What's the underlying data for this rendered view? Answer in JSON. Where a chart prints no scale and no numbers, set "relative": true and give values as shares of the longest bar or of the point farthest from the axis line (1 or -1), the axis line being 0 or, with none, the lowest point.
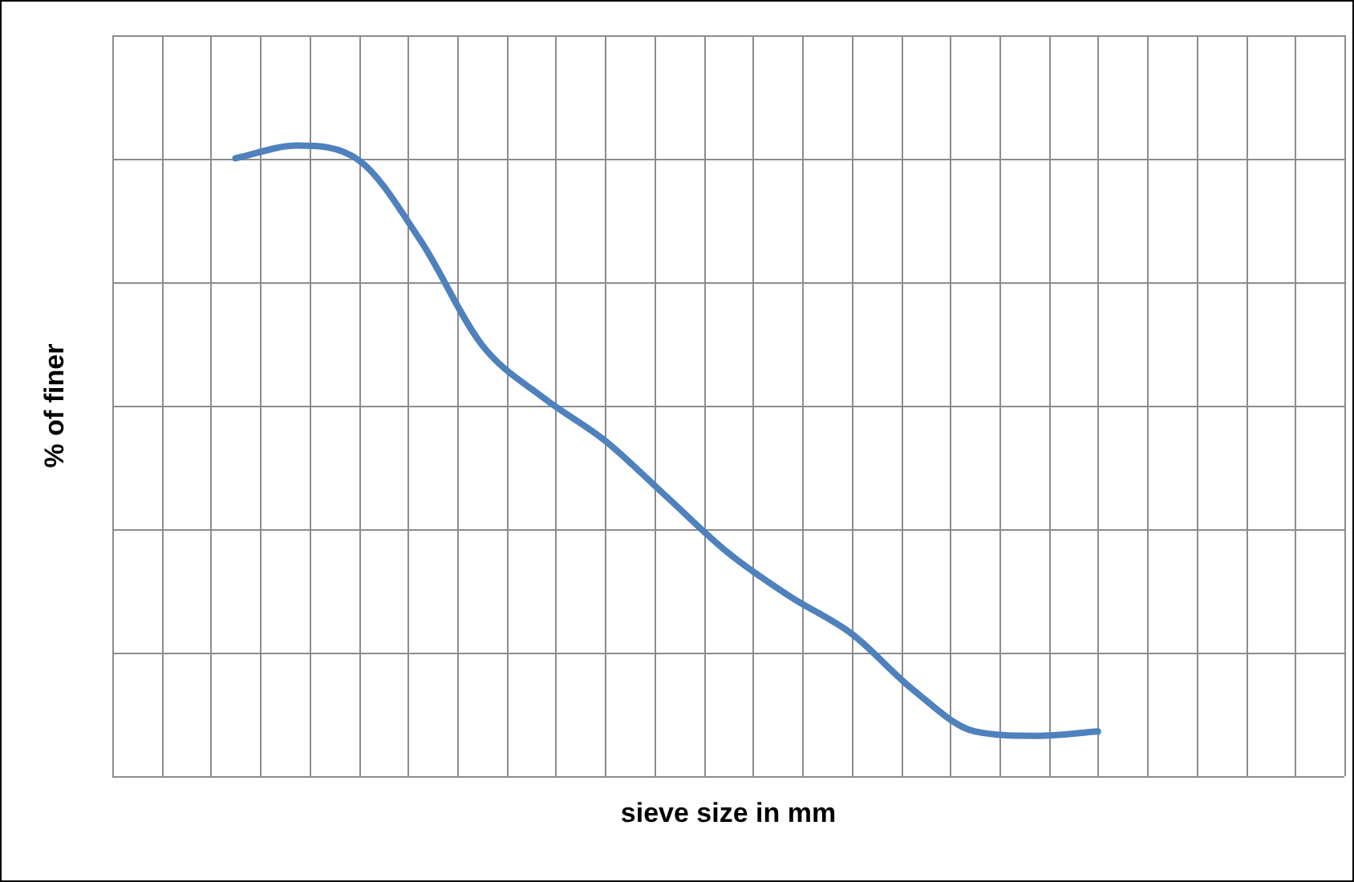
{
  "chart_data": {
    "type": "line",
    "relative": true,
    "xlabel": "sieve size in mm",
    "ylabel": "% of finer",
    "grid": true,
    "legend": false,
    "marker": "none",
    "line_style": "solid",
    "categories": [
      null,
      null,
      null,
      null,
      null,
      null,
      null,
      null,
      null,
      null,
      null,
      null,
      null,
      null,
      null,
      null,
      null,
      null,
      null,
      null,
      null
    ],
    "series": [
      {
        "color": "#4f81bd",
        "values": [
          null,
          null,
          0.98,
          1,
          0.977,
          0.85,
          0.684,
          0.6,
          0.532,
          0.443,
          0.354,
          0.285,
          0.226,
          0.137,
          0.071,
          0.064,
          0.071,
          null,
          null,
          null,
          null
        ]
      }
    ]
  }
}
